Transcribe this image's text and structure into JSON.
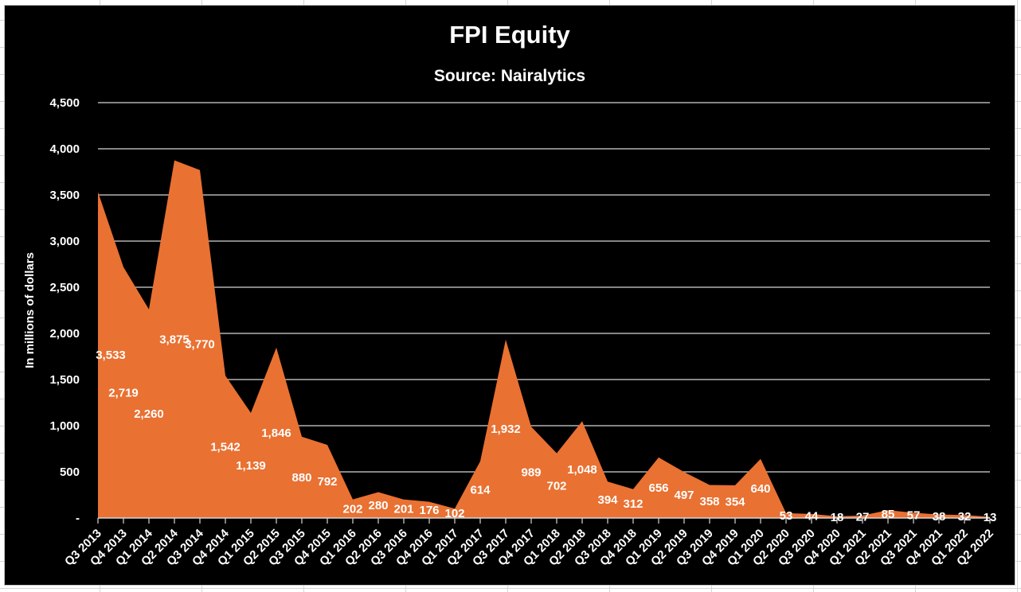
{
  "chart_data": {
    "type": "area",
    "title": "FPI Equity",
    "subtitle": "Source: Nairalytics",
    "ylabel": "In millions of dollars",
    "xlabel": "",
    "categories": [
      "Q3 2013",
      "Q4 2013",
      "Q1 2014",
      "Q2 2014",
      "Q3 2014",
      "Q4 2014",
      "Q1 2015",
      "Q2 2015",
      "Q3 2015",
      "Q4 2015",
      "Q1 2016",
      "Q2 2016",
      "Q3 2016",
      "Q4 2016",
      "Q1 2017",
      "Q2 2017",
      "Q3 2017",
      "Q4 2017",
      "Q1 2018",
      "Q2 2018",
      "Q3 2018",
      "Q4 2018",
      "Q1 2019",
      "Q2 2019",
      "Q3 2019",
      "Q4 2019",
      "Q1 2020",
      "Q2 2020",
      "Q3 2020",
      "Q4 2020",
      "Q1 2021",
      "Q2 2021",
      "Q3 2021",
      "Q4 2021",
      "Q1 2022",
      "Q2 2022"
    ],
    "values": [
      3533,
      2719,
      2260,
      3875,
      3770,
      1542,
      1139,
      1846,
      880,
      792,
      202,
      280,
      201,
      176,
      102,
      614,
      1932,
      989,
      702,
      1048,
      394,
      312,
      656,
      497,
      358,
      354,
      640,
      53,
      44,
      18,
      27,
      85,
      57,
      38,
      32,
      13
    ],
    "labels": [
      "3,533",
      "2,719",
      "2,260",
      "3,875",
      "3,770",
      "1,542",
      "1,139",
      "1,846",
      "880",
      "792",
      "202",
      "280",
      "201",
      "176",
      "102",
      "614",
      "1,932",
      "989",
      "702",
      "1,048",
      "394",
      "312",
      "656",
      "497",
      "358",
      "354",
      "640",
      "53",
      "44",
      "18",
      "27",
      "85",
      "57",
      "38",
      "32",
      "13"
    ],
    "ylim": [
      0,
      4500
    ],
    "ytick_interval": 500,
    "ytick_labels": [
      "-",
      "500",
      "1,000",
      "1,500",
      "2,000",
      "2,500",
      "3,000",
      "3,500",
      "4,000",
      "4,500"
    ],
    "grid": true,
    "legend": false,
    "x_axis_position": "on-ticks",
    "x_label_rotation_deg": 45,
    "data_label_position": "center-of-area",
    "colors": {
      "background": "#000000",
      "area_fill": "#E97132",
      "gridline": "#D6D6D6",
      "axis": "#D6D6D6",
      "text": "#FFFFFF",
      "sheet_background": "#FFFFFF",
      "sheet_gridline": "#D4D4D4"
    }
  }
}
